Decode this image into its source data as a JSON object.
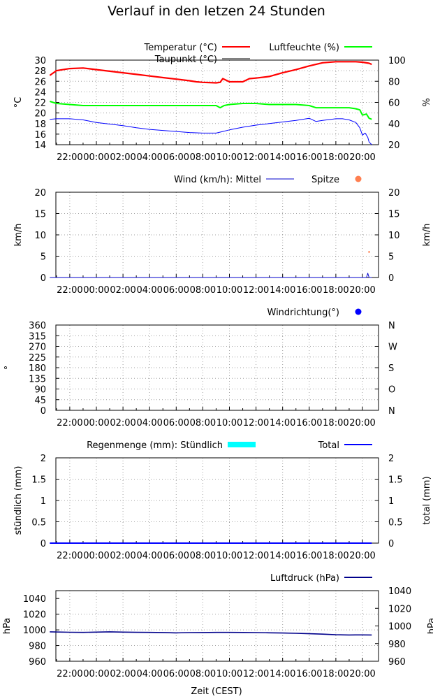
{
  "page_title": "Verlauf in den letzen 24 Stunden",
  "x_tick_labels": [
    "22:00",
    "00:00",
    "02:00",
    "04:00",
    "06:00",
    "08:00",
    "10:00",
    "12:00",
    "14:00",
    "16:00",
    "18:00",
    "20:00"
  ],
  "x_axis_label": "Zeit (CEST)",
  "colors": {
    "temperature": "#ff0000",
    "dewpoint": "#000000",
    "humidity": "#00ff00",
    "temp_drawn_dewpoint": "#0000ff",
    "wind_mean": "#0000cd",
    "wind_gust": "#ff7f50",
    "wind_dir": "#0000ff",
    "rain_hourly": "#00ffff",
    "rain_total": "#0000ff",
    "pressure": "#00008b"
  },
  "chart_data": [
    {
      "type": "line",
      "id": "temperature",
      "title": "",
      "x_range_hours": [
        -3.5,
        20.7
      ],
      "ylabel": "°C",
      "ylim": [
        14,
        30
      ],
      "yticks": [
        14,
        16,
        18,
        20,
        22,
        24,
        26,
        28,
        30
      ],
      "y2label": "%",
      "y2lim": [
        20,
        100
      ],
      "y2ticks": [
        20,
        40,
        60,
        80,
        100
      ],
      "legend": [
        "Temperatur (°C)",
        "Taupunkt (°C)",
        "Luftfeuchte (%)"
      ],
      "legend_placement": "top",
      "grid": true,
      "series": [
        {
          "name": "Temperatur (°C)",
          "axis": "left",
          "x": [
            -3.5,
            -3,
            -2,
            -1,
            0,
            1,
            2,
            3,
            4,
            5,
            6,
            7,
            7.5,
            8,
            9,
            9.3,
            9.5,
            10,
            10.5,
            11,
            11.5,
            12,
            13,
            14,
            15,
            16,
            17,
            18,
            19,
            19.5,
            20,
            20.5,
            20.7
          ],
          "y": [
            27.1,
            28,
            28.4,
            28.5,
            28.2,
            27.9,
            27.6,
            27.3,
            27,
            26.7,
            26.4,
            26.1,
            25.9,
            25.8,
            25.7,
            25.8,
            26.5,
            25.9,
            25.9,
            25.9,
            26.5,
            26.6,
            26.9,
            27.6,
            28.2,
            28.9,
            29.5,
            29.7,
            29.7,
            29.7,
            29.6,
            29.4,
            29.2
          ]
        },
        {
          "name": "Taupunkt (°C)",
          "axis": "left",
          "x": [
            -3.5,
            -3,
            -2,
            -1,
            0,
            1,
            2,
            3,
            4,
            5,
            6,
            7,
            8,
            9,
            9.5,
            10,
            11,
            12,
            13,
            14,
            15,
            16,
            16.5,
            17,
            18,
            18.5,
            19,
            19.5,
            19.8,
            20,
            20.2,
            20.4,
            20.5,
            20.7
          ],
          "y": [
            18.8,
            18.9,
            18.9,
            18.7,
            18.2,
            17.9,
            17.6,
            17.2,
            16.9,
            16.7,
            16.5,
            16.3,
            16.2,
            16.2,
            16.5,
            16.8,
            17.3,
            17.7,
            18,
            18.3,
            18.6,
            19,
            18.4,
            18.6,
            18.9,
            18.9,
            18.7,
            18.2,
            17.2,
            15.8,
            16.2,
            15.4,
            14.5,
            14
          ]
        },
        {
          "name": "Luftfeuchte (%)",
          "axis": "right",
          "x": [
            -3.5,
            -3,
            -2,
            -1,
            0,
            1,
            2,
            3,
            4,
            5,
            6,
            7,
            8,
            9,
            9.3,
            9.6,
            10,
            11,
            12,
            13,
            14,
            15,
            16,
            16.5,
            17,
            18,
            19,
            19.5,
            19.8,
            20,
            20.3,
            20.5,
            20.7
          ],
          "y": [
            61,
            59,
            58,
            57,
            57,
            57,
            57,
            57,
            57,
            57,
            57,
            57,
            57,
            57,
            55,
            57,
            58,
            59,
            59,
            58,
            58,
            58,
            57,
            55,
            55,
            55,
            55,
            54,
            53,
            48,
            49,
            45,
            44
          ]
        }
      ]
    },
    {
      "type": "line",
      "id": "wind",
      "title": "",
      "ylabel": "km/h",
      "ylim": [
        0,
        20
      ],
      "yticks": [
        0,
        5,
        10,
        15,
        20
      ],
      "y2label": "km/h",
      "y2lim": [
        0,
        20
      ],
      "y2ticks": [
        0,
        5,
        10,
        15,
        20
      ],
      "legend": [
        "Wind (km/h): Mittel",
        "Spitze"
      ],
      "legend_placement": "top",
      "grid": true,
      "series": [
        {
          "name": "Mittel",
          "x": [
            -3.5,
            20,
            20.3,
            20.4,
            20.5,
            20.7
          ],
          "y": [
            0,
            0,
            0,
            1,
            0,
            0
          ]
        },
        {
          "name": "Spitze",
          "x": [
            20.5
          ],
          "y": [
            6
          ]
        }
      ]
    },
    {
      "type": "scatter",
      "id": "winddir",
      "title": "",
      "ylabel": "°",
      "ylim": [
        0,
        360
      ],
      "yticks": [
        0,
        45,
        90,
        135,
        180,
        225,
        270,
        315,
        360
      ],
      "y2ticks": [
        "N",
        "O",
        "S",
        "W",
        "N"
      ],
      "legend": [
        "Windrichtung(°)"
      ],
      "legend_placement": "top-right",
      "grid": true,
      "series": [
        {
          "name": "Windrichtung(°)",
          "x": [],
          "y": []
        }
      ]
    },
    {
      "type": "bar",
      "id": "rain",
      "title": "",
      "ylabel": "stündlich (mm)",
      "ylim": [
        0,
        2
      ],
      "yticks": [
        "0",
        "0.5",
        "1",
        "1.5",
        "2"
      ],
      "y2label": "total (mm)",
      "y2lim": [
        0,
        2
      ],
      "y2ticks": [
        "0",
        "0.5",
        "1",
        "1.5",
        "2"
      ],
      "legend": [
        "Regenmenge (mm): Stündlich",
        "Total"
      ],
      "legend_placement": "top",
      "grid": true,
      "series": [
        {
          "name": "Stündlich",
          "x": [
            -3.5,
            20.7
          ],
          "y": [
            0,
            0
          ]
        },
        {
          "name": "Total",
          "x": [
            -3.5,
            20.7
          ],
          "y": [
            0,
            0
          ]
        }
      ]
    },
    {
      "type": "line",
      "id": "pressure",
      "title": "",
      "ylabel": "hPa",
      "ylim": [
        960,
        1050
      ],
      "yticks": [
        960,
        980,
        1000,
        1020,
        1040
      ],
      "y2label": "hPa",
      "y2ticks": [
        960,
        980,
        1000,
        1020,
        1040
      ],
      "legend": [
        "Luftdruck (hPa)"
      ],
      "legend_placement": "top-right",
      "grid": true,
      "series": [
        {
          "name": "Luftdruck (hPa)",
          "x": [
            -3.5,
            -2,
            -1,
            0,
            1,
            2,
            3,
            4,
            5,
            6,
            7,
            8,
            9,
            10,
            11,
            12,
            13,
            14,
            15,
            16,
            17,
            18,
            19,
            20,
            20.7
          ],
          "y": [
            997.5,
            997,
            996.8,
            997.2,
            997.5,
            997.2,
            996.9,
            996.8,
            996.6,
            996.2,
            996.5,
            996.6,
            996.8,
            996.8,
            996.7,
            996.5,
            996.3,
            996,
            995.6,
            995.1,
            994.6,
            993.8,
            993.5,
            993.6,
            993.5
          ]
        }
      ]
    }
  ]
}
